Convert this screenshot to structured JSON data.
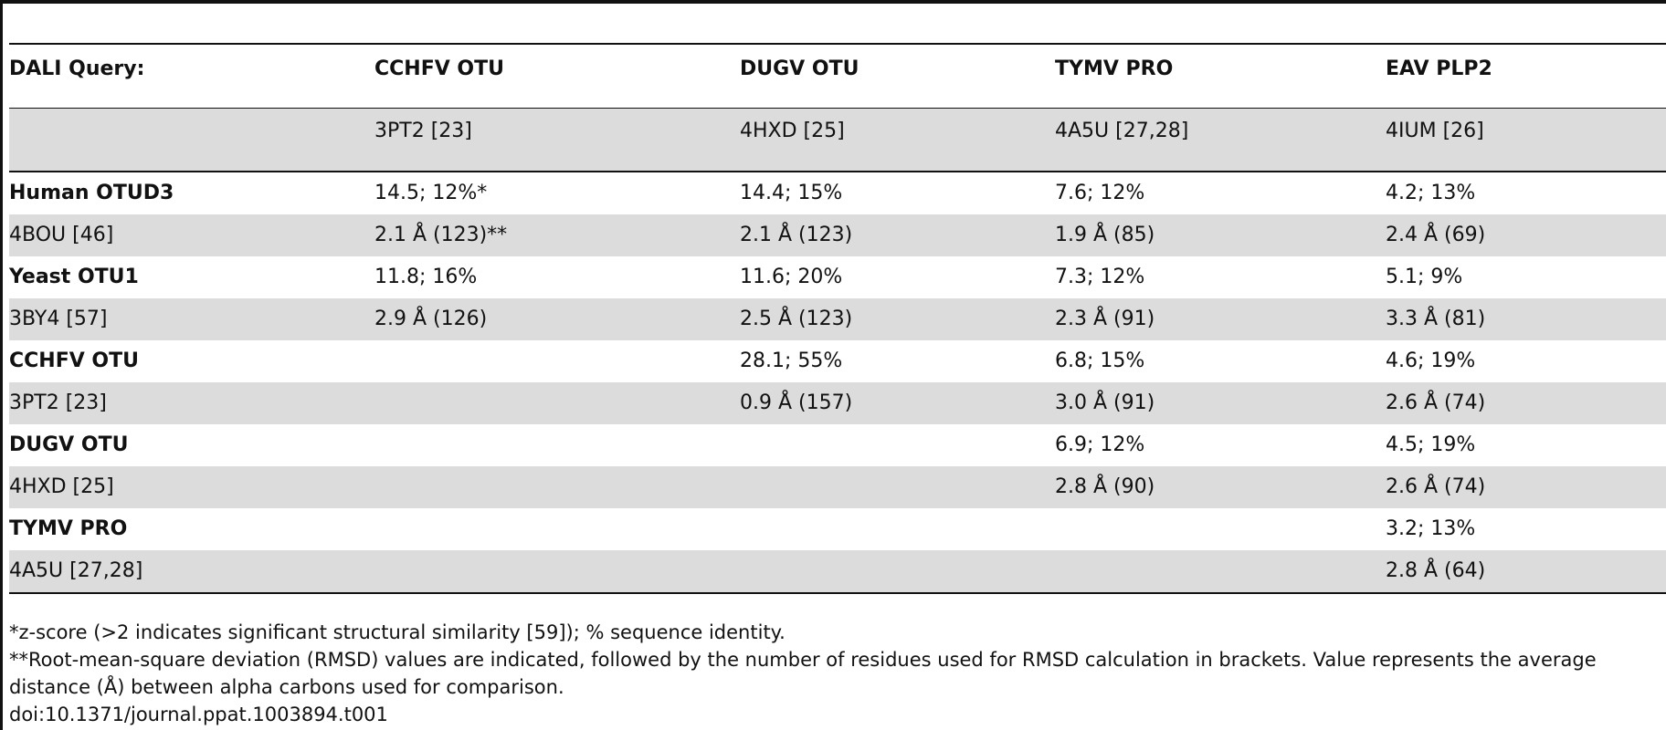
{
  "header": {
    "query_label": "DALI Query:",
    "columns": [
      "CCHFV OTU",
      "DUGV OTU",
      "TYMV PRO",
      "EAV PLP2"
    ],
    "pdb_ids": [
      "3PT2 [23]",
      "4HXD [25]",
      "4A5U [27,28]",
      "4IUM [26]"
    ]
  },
  "rows": [
    {
      "label": "Human OTUD3",
      "bold": true,
      "cells": [
        "14.5; 12%*",
        "14.4; 15%",
        "7.6; 12%",
        "4.2; 13%"
      ]
    },
    {
      "label": "4BOU [46]",
      "bold": false,
      "cells": [
        "2.1 Å (123)**",
        "2.1 Å (123)",
        "1.9 Å (85)",
        "2.4 Å (69)"
      ]
    },
    {
      "label": "Yeast OTU1",
      "bold": true,
      "cells": [
        "11.8; 16%",
        "11.6; 20%",
        "7.3; 12%",
        "5.1; 9%"
      ]
    },
    {
      "label": "3BY4 [57]",
      "bold": false,
      "cells": [
        "2.9 Å (126)",
        "2.5 Å (123)",
        "2.3 Å (91)",
        "3.3 Å (81)"
      ]
    },
    {
      "label": "CCHFV OTU",
      "bold": true,
      "cells": [
        "",
        "28.1; 55%",
        "6.8; 15%",
        "4.6; 19%"
      ]
    },
    {
      "label": "3PT2 [23]",
      "bold": false,
      "cells": [
        "",
        "0.9 Å (157)",
        "3.0 Å (91)",
        "2.6 Å (74)"
      ]
    },
    {
      "label": "DUGV OTU",
      "bold": true,
      "cells": [
        "",
        "",
        "6.9; 12%",
        "4.5; 19%"
      ]
    },
    {
      "label": "4HXD [25]",
      "bold": false,
      "cells": [
        "",
        "",
        "2.8 Å (90)",
        "2.6 Å (74)"
      ]
    },
    {
      "label": "TYMV PRO",
      "bold": true,
      "cells": [
        "",
        "",
        "",
        "3.2; 13%"
      ]
    },
    {
      "label": "4A5U [27,28]",
      "bold": false,
      "cells": [
        "",
        "",
        "",
        "2.8 Å (64)"
      ]
    }
  ],
  "footnotes": [
    "*z-score (>2 indicates significant structural similarity [59]); % sequence identity.",
    "**Root-mean-square deviation (RMSD) values are indicated, followed by the number of residues used for RMSD calculation in brackets. Value represents the average distance (Å) between alpha carbons used for comparison.",
    "doi:10.1371/journal.ppat.1003894.t001"
  ]
}
